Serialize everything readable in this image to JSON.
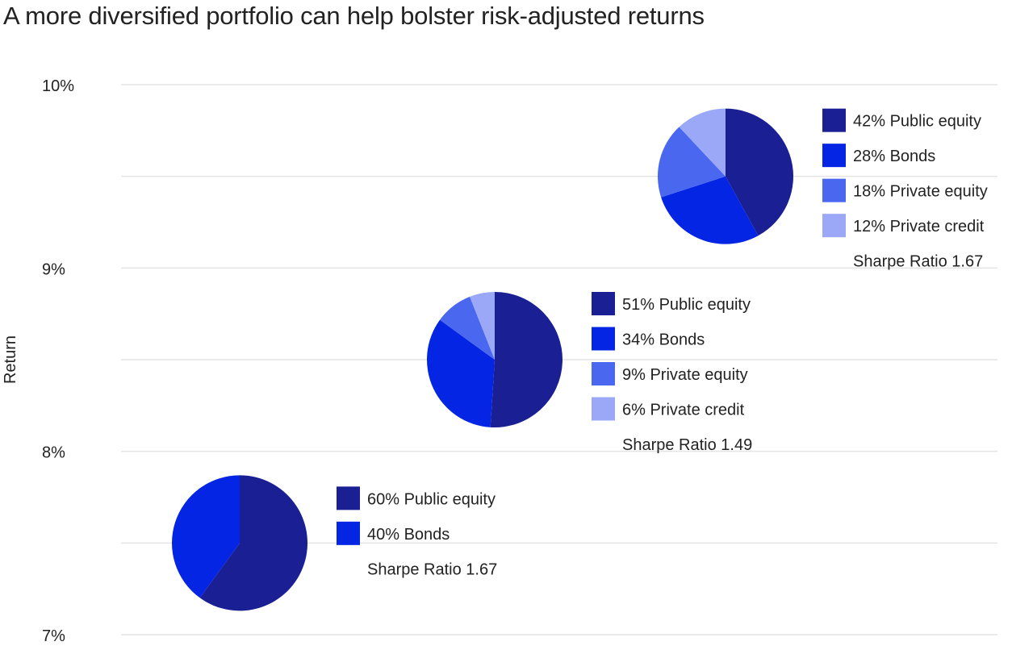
{
  "title": "A more diversified portfolio can help bolster risk-adjusted returns",
  "chart_data": {
    "type": "scatter",
    "title": "A more diversified portfolio can help bolster risk-adjusted returns",
    "xlabel": "",
    "ylabel": "Return",
    "ylim": [
      7,
      10
    ],
    "yticks": [
      "10%",
      "9%",
      "8%",
      "7%"
    ],
    "grid": true,
    "colors": {
      "Public equity": "#1a1f94",
      "Bonds": "#0425e3",
      "Private equity": "#4a68ef",
      "Private credit": "#9aa8f7",
      "gridline": "#e4e4e4",
      "text": "#222222"
    },
    "portfolios": [
      {
        "return": 7.5,
        "sharpe_label": "Sharpe Ratio 1.67",
        "slices": [
          {
            "name": "Public equity",
            "value": 60,
            "label": "60% Public equity"
          },
          {
            "name": "Bonds",
            "value": 40,
            "label": "40% Bonds"
          }
        ]
      },
      {
        "return": 8.5,
        "sharpe_label": "Sharpe Ratio 1.49",
        "slices": [
          {
            "name": "Public equity",
            "value": 51,
            "label": "51% Public equity"
          },
          {
            "name": "Bonds",
            "value": 34,
            "label": "34% Bonds"
          },
          {
            "name": "Private equity",
            "value": 9,
            "label": "9% Private equity"
          },
          {
            "name": "Private credit",
            "value": 6,
            "label": "6% Private credit"
          }
        ]
      },
      {
        "return": 9.5,
        "sharpe_label": "Sharpe Ratio 1.67",
        "slices": [
          {
            "name": "Public equity",
            "value": 42,
            "label": "42% Public equity"
          },
          {
            "name": "Bonds",
            "value": 28,
            "label": "28% Bonds"
          },
          {
            "name": "Private equity",
            "value": 18,
            "label": "18% Private equity"
          },
          {
            "name": "Private credit",
            "value": 12,
            "label": "12% Private credit"
          }
        ]
      }
    ]
  }
}
